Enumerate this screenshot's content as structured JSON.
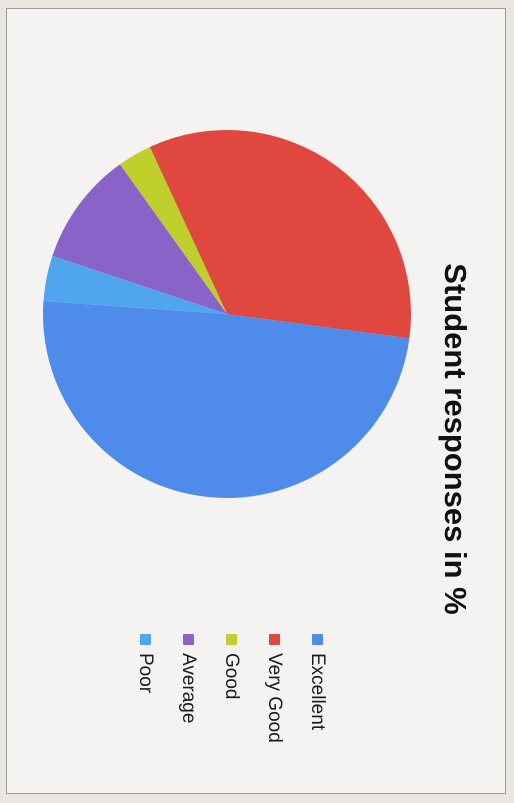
{
  "chart_data": {
    "type": "pie",
    "title": "Student responses in %",
    "legend_position": "right",
    "start_angle_deg": 94,
    "slices": [
      {
        "label": "Excellent",
        "value": 49,
        "color": "#4f8bea"
      },
      {
        "label": "Very Good",
        "value": 34,
        "color": "#e0483f"
      },
      {
        "label": "Good",
        "value": 3,
        "color": "#bfcf2c"
      },
      {
        "label": "Average",
        "value": 10,
        "color": "#8a63c9"
      },
      {
        "label": "Poor",
        "value": 4,
        "color": "#4fa6ee"
      }
    ]
  }
}
